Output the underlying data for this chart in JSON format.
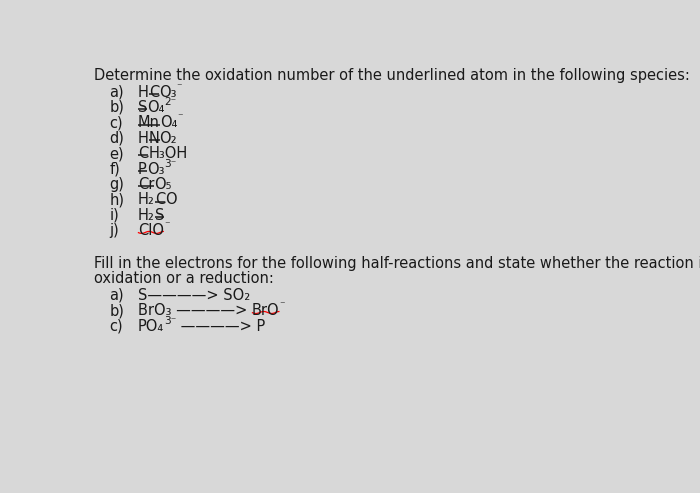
{
  "bg_color": "#d8d8d8",
  "font_color": "#1a1a1a",
  "font_size": 10.5,
  "title": "Determine the oxidation number of the underlined atom in the following species:",
  "formulas": [
    {
      "label": "a)",
      "pre": "H",
      "under": "C",
      "post": "O₃",
      "sup": "⁻",
      "wavy": false
    },
    {
      "label": "b)",
      "pre": "",
      "under": "S",
      "post": "O₄",
      "sup": "2⁻",
      "wavy": false
    },
    {
      "label": "c)",
      "pre": "",
      "under": "Mn",
      "post": "O₄",
      "sup": "⁻",
      "wavy": false
    },
    {
      "label": "d)",
      "pre": "H",
      "under": "N",
      "post": "O₂",
      "sup": "",
      "wavy": false
    },
    {
      "label": "e)",
      "pre": "",
      "under": "C",
      "post": "H₃OH",
      "sup": "",
      "wavy": false
    },
    {
      "label": "f)",
      "pre": "",
      "under": "P",
      "post": "O₃",
      "sup": "3⁻",
      "wavy": false
    },
    {
      "label": "g)",
      "pre": "",
      "under": "Cr",
      "post": "O₅",
      "sup": "",
      "wavy": false
    },
    {
      "label": "h)",
      "pre": "H₂",
      "under": "C",
      "post": "O",
      "sup": "",
      "wavy": false
    },
    {
      "label": "i)",
      "pre": "H₂",
      "under": "S",
      "post": "",
      "sup": "",
      "wavy": false
    },
    {
      "label": "j)",
      "pre": "",
      "under": "ClO",
      "post": "",
      "sup": "⁻",
      "wavy": true
    }
  ],
  "part2_line1": "Fill in the electrons for the following half-reactions and state whether the reaction is an",
  "part2_line2": "oxidation or a reduction:",
  "part2_items": [
    {
      "label": "a)",
      "pre": "S————> SO₂",
      "under": "",
      "post": "",
      "sup": "",
      "wavy": false
    },
    {
      "label": "b)",
      "pre": "BrO₃ ————> ",
      "under": "BrO",
      "post": "",
      "sup": "⁻",
      "wavy": true
    },
    {
      "label": "c)",
      "pre": "PO₄",
      "under": "",
      "post": " ————> P",
      "sup": "3⁻",
      "wavy": false,
      "sup_after_pre": true
    }
  ]
}
